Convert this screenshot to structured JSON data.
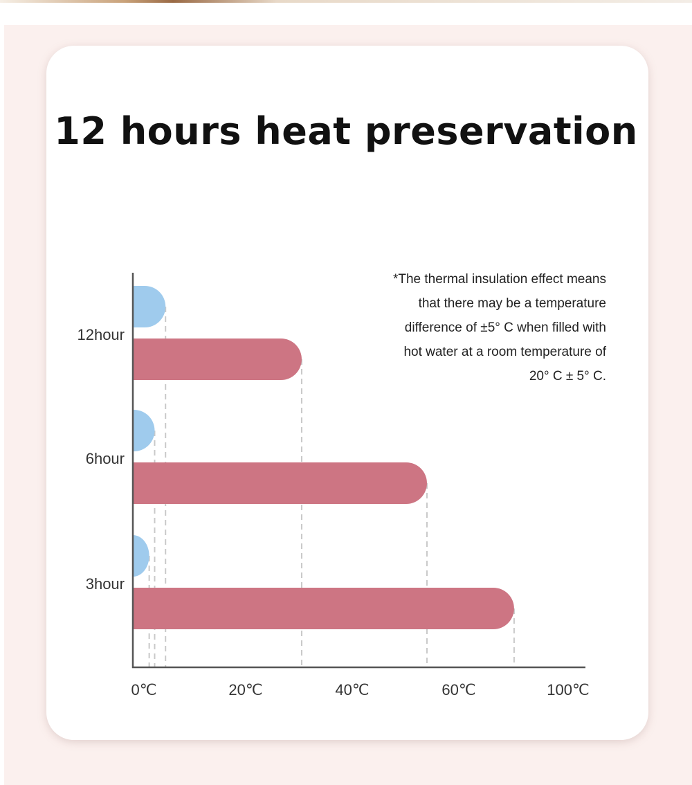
{
  "title": "12 hours heat preservation",
  "note_lines": [
    "*The thermal insulation effect means",
    "that there may be a temperature",
    "difference of ±5° C when filled with",
    "hot water at a room temperature of",
    "20° C ± 5° C."
  ],
  "chart_data": {
    "type": "bar",
    "orientation": "horizontal",
    "categories": [
      "12hour",
      "6hour",
      "3hour"
    ],
    "series": [
      {
        "values": [
          6,
          4,
          3
        ],
        "color": "#9fcbed"
      },
      {
        "values": [
          31,
          54,
          70
        ],
        "color": "#cd7583"
      }
    ],
    "x_ticks": [
      "0℃",
      "20℃",
      "40℃",
      "60℃",
      "100℃"
    ],
    "grid": false,
    "reference_lines": "dashed",
    "legend": "none"
  }
}
